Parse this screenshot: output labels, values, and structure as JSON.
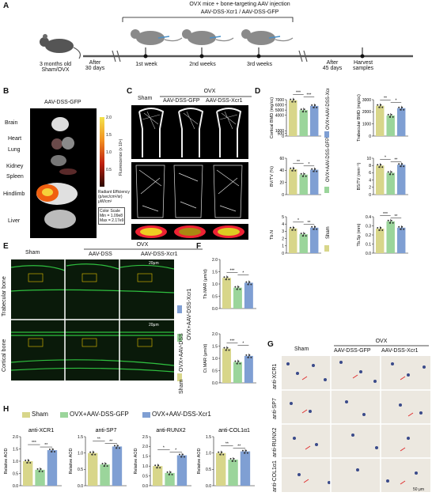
{
  "colors": {
    "sham": "#d8d68a",
    "gfp": "#9bd59b",
    "xcr1": "#7f9fd3",
    "bone_green": "#2fbf3f",
    "heat_top": "#f3e34b",
    "heat_bottom": "#2a0a00"
  },
  "panelA": {
    "label": "A",
    "header_line1": "OVX mice + bone-targeting AAV injection",
    "header_line2": "AAV-DSS-Xcr1 / AAV-DSS-GFP",
    "mouse_caption_1": "3 months old",
    "mouse_caption_2": "Sham/OVX",
    "after30_1": "After",
    "after30_2": "30 days",
    "week1": "1st week",
    "week2": "2nd weeks",
    "week3": "3rd weeks",
    "after45_1": "After",
    "after45_2": "45 days",
    "harvest_1": "Harvest",
    "harvest_2": "samples"
  },
  "panelB": {
    "label": "B",
    "title": "AAV-DSS-GFP",
    "organs": [
      "Brain",
      "Heart",
      "Lung",
      "Kidney",
      "Spleen",
      "Hindlimb",
      "Liver"
    ],
    "scale_ticks": [
      "2.0",
      "1.5",
      "1.0",
      "0.5"
    ],
    "scale_label": "Fluorescence (x 10⁹)",
    "radiant_1": "Radiant Efficiency",
    "radiant_2": "(p/sec/cm²/sr)",
    "radiant_3": "μW/cm²",
    "color_scale_1": "Color Scale",
    "color_scale_2": "Min = 1.09e8",
    "color_scale_3": "Max = 2.17e9"
  },
  "panelC": {
    "label": "C",
    "ovx": "OVX",
    "cols": [
      "Sham",
      "AAV-DSS-GFP",
      "AAV-DSS-Xcr1"
    ]
  },
  "panelD": {
    "label": "D",
    "legend": [
      "Sham",
      "OVX+AAV-DSS-GFP",
      "OVX+AAV-DSS-Xcr1"
    ],
    "charts": [
      {
        "ylabel": "Cortical BMD (mg/cc)",
        "ticks": [
          "7000",
          "6000",
          "5000",
          "4000",
          "1000",
          "500",
          "0"
        ],
        "values": [
          6900,
          5000,
          5800
        ],
        "sig": [
          "***",
          "***"
        ]
      },
      {
        "ylabel": "Trabecular BMD (mg/cc)",
        "ticks": [
          "3000",
          "2000",
          "1000",
          "0"
        ],
        "values": [
          2500,
          1700,
          2300
        ],
        "sig": [
          "**",
          "*"
        ]
      },
      {
        "ylabel": "BV/TV (%)",
        "ticks": [
          "60",
          "40",
          "20",
          "0"
        ],
        "values": [
          42,
          33,
          41
        ],
        "sig": [
          "**",
          "*"
        ]
      },
      {
        "ylabel": "BS/TV (mm⁻¹)",
        "ticks": [
          "10",
          "8",
          "6",
          "4",
          "2",
          "0"
        ],
        "values": [
          8,
          6,
          8.2
        ],
        "sig": [
          "*",
          "**"
        ]
      },
      {
        "ylabel": "Tb.N",
        "ticks": [
          "5",
          "4",
          "3",
          "2",
          "1",
          "0"
        ],
        "values": [
          3.4,
          2.6,
          3.5
        ],
        "sig": [
          "*",
          "**"
        ]
      },
      {
        "ylabel": "Tb.Sp (mm)",
        "ticks": [
          "0.4",
          "0.3",
          "0.2",
          "0.1",
          "0.0"
        ],
        "values": [
          0.27,
          0.35,
          0.28
        ],
        "sig": [
          "***",
          "**"
        ]
      }
    ]
  },
  "panelE": {
    "label": "E",
    "ovx": "OVX",
    "cols": [
      "Sham",
      "AAV-DSS",
      "AAV-DSS-Xcr1"
    ],
    "rows": [
      "Trabecular bone",
      "Cortical bone"
    ],
    "scalebar": "20μm",
    "legend": [
      "Sham",
      "OVX+AAV-DSS",
      "OVX+AAV-DSS-Xcr1"
    ]
  },
  "panelF": {
    "label": "F",
    "charts": [
      {
        "ylabel": "Tb.MAR (μm/d)",
        "ticks": [
          "2.0",
          "1.5",
          "1.0",
          "0.5",
          "0.0"
        ],
        "values": [
          1.25,
          0.85,
          1.05
        ],
        "sig": [
          "***",
          "*"
        ]
      },
      {
        "ylabel": "Ct.MAR (μm/d)",
        "ticks": [
          "2.0",
          "1.5",
          "1.0",
          "0.5",
          "0.0"
        ],
        "values": [
          1.4,
          0.85,
          1.1
        ],
        "sig": [
          "***",
          "*"
        ]
      }
    ]
  },
  "panelG": {
    "label": "G",
    "ovx": "OVX",
    "cols": [
      "Sham",
      "AAV-DSS-GFP",
      "AAV-DSS-Xcr1"
    ],
    "rows": [
      "anti-XCR1",
      "anti-SP7",
      "anti-RUNX2",
      "anti-COL1α1"
    ],
    "scalebar": "50 μm"
  },
  "panelH": {
    "label": "H",
    "legend": [
      "Sham",
      "OVX+AAV-DSS-GFP",
      "OVX+AAV-DSS-Xcr1"
    ],
    "charts": [
      {
        "title": "anti-XCR1",
        "ylabel": "Relative AOD",
        "ticks": [
          "2.0",
          "1.5",
          "1.0",
          "0.5",
          "0.0"
        ],
        "values": [
          1.0,
          0.65,
          1.45
        ],
        "sig": [
          "***",
          "**"
        ]
      },
      {
        "title": "anti-SP7",
        "ylabel": "Relative AOD",
        "ticks": [
          "1.5",
          "1.0",
          "0.5",
          "0.0"
        ],
        "values": [
          1.0,
          0.65,
          1.2
        ],
        "sig": [
          "**",
          "**"
        ]
      },
      {
        "title": "anti-RUNX2",
        "ylabel": "Relative AOD",
        "ticks": [
          "2.5",
          "2.0",
          "1.5",
          "1.0",
          "0.5",
          "0.0"
        ],
        "values": [
          1.0,
          0.65,
          1.55
        ],
        "sig": [
          "*",
          "*"
        ]
      },
      {
        "title": "anti-COL1α1",
        "ylabel": "Relative AOD",
        "ticks": [
          "1.5",
          "1.0",
          "0.5",
          "0.0"
        ],
        "values": [
          1.0,
          0.8,
          1.05
        ],
        "sig": [
          "**",
          "**"
        ]
      }
    ]
  }
}
